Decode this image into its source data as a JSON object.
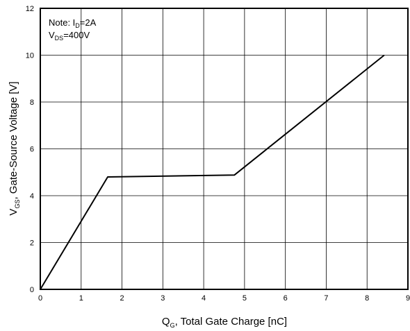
{
  "chart_data": {
    "type": "line",
    "title": "",
    "xlabel": {
      "symbol": "Q",
      "subscript": "G",
      "text": ", Total Gate Charge [nC]"
    },
    "ylabel": {
      "symbol": "V",
      "subscript": "GS",
      "text": ", Gate-Source Voltage [V]"
    },
    "xlim": [
      0,
      9
    ],
    "ylim": [
      0,
      12
    ],
    "x_ticks": [
      0,
      1,
      2,
      3,
      4,
      5,
      6,
      7,
      8,
      9
    ],
    "y_ticks": [
      0,
      2,
      4,
      6,
      8,
      10,
      12
    ],
    "grid": true,
    "annotations": [
      {
        "prefix": "Note: I",
        "subscript": "D",
        "suffix": "=2A"
      },
      {
        "prefix": "V",
        "subscript": "DS",
        "suffix": "=400V"
      }
    ],
    "series": [
      {
        "x": [
          0,
          1.65,
          4.75,
          8.42
        ],
        "y": [
          0,
          4.8,
          4.88,
          10.0
        ],
        "color": "#000000"
      }
    ]
  }
}
